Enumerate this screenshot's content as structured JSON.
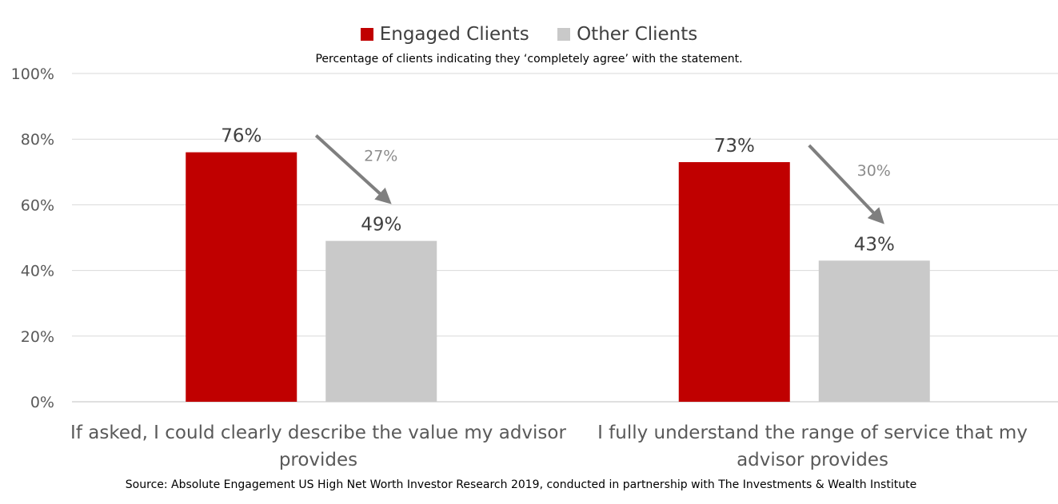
{
  "legend": {
    "items": [
      {
        "label": "Engaged Clients",
        "color": "#C00000"
      },
      {
        "label": "Other Clients",
        "color": "#C9C9C9"
      }
    ]
  },
  "subtitle": "Percentage of clients indicating they ‘completely agree’ with the statement.",
  "source": "Source: Absolute Engagement US High Net Worth Investor Research 2019, conducted in partnership with The Investments & Wealth Institute",
  "chart_data": {
    "type": "bar",
    "categories": [
      "If asked, I could clearly describe the value my advisor provides",
      "I fully understand the range of service that my advisor provides"
    ],
    "series": [
      {
        "name": "Engaged Clients",
        "values": [
          76,
          73
        ],
        "labels": [
          "76%",
          "73%"
        ],
        "color": "#C00000"
      },
      {
        "name": "Other Clients",
        "values": [
          49,
          43
        ],
        "labels": [
          "49%",
          "43%"
        ],
        "color": "#C9C9C9"
      }
    ],
    "annotations": [
      {
        "category": 0,
        "label": "27%"
      },
      {
        "category": 1,
        "label": "30%"
      }
    ],
    "ylim": [
      0,
      100
    ],
    "yticks": [
      0,
      20,
      40,
      60,
      80,
      100
    ],
    "ytick_labels": [
      "0%",
      "20%",
      "40%",
      "60%",
      "80%",
      "100%"
    ],
    "grid": true,
    "legend_position": "top-center"
  }
}
